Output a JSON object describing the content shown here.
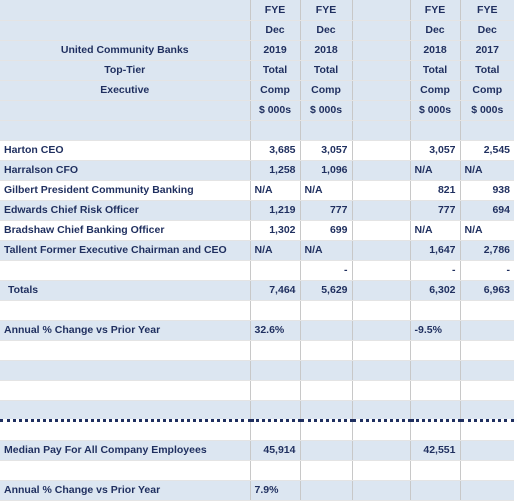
{
  "table": {
    "rows": [
      [
        null,
        "FYE",
        "FYE",
        null,
        "FYE",
        "FYE"
      ],
      [
        null,
        "Dec",
        "Dec",
        null,
        "Dec",
        "Dec"
      ],
      [
        "United Community Banks",
        "2019",
        "2018",
        null,
        "2018",
        "2017"
      ],
      [
        "Top-Tier",
        "Total",
        "Total",
        null,
        "Total",
        "Total"
      ],
      [
        "Executive",
        "Comp",
        "Comp",
        null,
        "Comp",
        "Comp"
      ],
      [
        null,
        "$ 000s",
        "$ 000s",
        null,
        "$ 000s",
        "$ 000s"
      ],
      [],
      [
        "Harton CEO",
        "3,685",
        "3,057",
        null,
        "3,057",
        "2,545"
      ],
      [
        "Harralson CFO",
        "1,258",
        "1,096",
        null,
        "N/A",
        "N/A"
      ],
      [
        "Gilbert President Community Banking",
        "N/A",
        "N/A",
        null,
        "821",
        "938"
      ],
      [
        "Edwards Chief Risk Officer",
        "1,219",
        "777",
        null,
        "777",
        "694"
      ],
      [
        "Bradshaw Chief Banking Officer",
        "1,302",
        "699",
        null,
        "N/A",
        "N/A"
      ],
      [
        "Tallent Former Executive Chairman and CEO",
        "N/A",
        "N/A",
        null,
        "1,647",
        "2,786"
      ],
      [
        null,
        null,
        "-",
        null,
        "-",
        "-"
      ],
      [
        "Totals",
        "7,464",
        "5,629",
        null,
        "6,302",
        "6,963"
      ],
      [],
      [
        "Annual % Change vs Prior Year",
        "32.6%",
        null,
        null,
        "-9.5%",
        null
      ],
      [],
      [],
      [],
      [],
      [],
      [
        "Median Pay For All Company Employees",
        "45,914",
        null,
        null,
        "42,551",
        null
      ],
      [],
      [
        "Annual % Change vs Prior Year",
        "7.9%",
        null,
        null,
        null,
        null
      ]
    ]
  }
}
